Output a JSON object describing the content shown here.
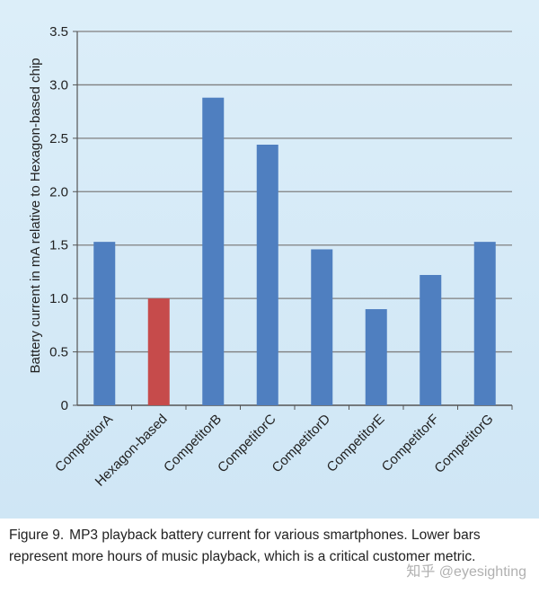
{
  "chart_data": {
    "type": "bar",
    "title": "",
    "xlabel": "",
    "ylabel": "Battery current in mA relative to Hexagon-based chip",
    "ylim": [
      0,
      3.5
    ],
    "yticks": [
      "0",
      "0.5",
      "1.0",
      "1.5",
      "2.0",
      "2.5",
      "3.0",
      "3.5"
    ],
    "ytick_values": [
      0,
      0.5,
      1.0,
      1.5,
      2.0,
      2.5,
      3.0,
      3.5
    ],
    "grid": true,
    "categories": [
      "CompetitorA",
      "Hexagon-based",
      "CompetitorB",
      "CompetitorC",
      "CompetitorD",
      "CompetitorE",
      "CompetitorF",
      "CompetitorG"
    ],
    "values": [
      1.53,
      1.0,
      2.88,
      2.44,
      1.46,
      0.9,
      1.22,
      1.53
    ],
    "bar_colors": [
      "#4f7fc0",
      "#c64b4b",
      "#4f7fc0",
      "#4f7fc0",
      "#4f7fc0",
      "#4f7fc0",
      "#4f7fc0",
      "#4f7fc0"
    ]
  },
  "caption": {
    "label": "Figure 9.",
    "text": "MP3 playback battery current for various smartphones. Lower bars represent more hours of music playback, which is a critical customer metric."
  },
  "watermark": "知乎 @eyesighting",
  "colors": {
    "panel_bg": "#d5eaf7",
    "grid": "#7f7f7f",
    "axis": "#555555"
  }
}
